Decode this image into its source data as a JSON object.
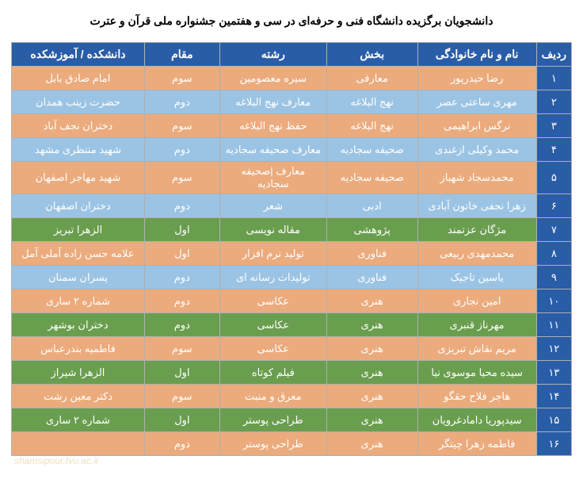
{
  "title": "دانشجویان برگزیده دانشگاه فنی و حرفه‌ای در سی و هفتمین جشنواره ملی قرآن و عترت",
  "watermark": "shamsipour.tvu.ac.ir",
  "colors": {
    "header_bg": "#2a5da8",
    "orange_bg": "#ebab7d",
    "blue_bg": "#9bc4e4",
    "green_bg": "#6a9e4f"
  },
  "columns": [
    {
      "label": "ردیف",
      "key": "idx"
    },
    {
      "label": "نام و نام خانوادگی",
      "key": "name"
    },
    {
      "label": "بخش",
      "key": "section"
    },
    {
      "label": "رشته",
      "key": "field"
    },
    {
      "label": "مقام",
      "key": "rank"
    },
    {
      "label": "دانشکده / آموزشکده",
      "key": "school"
    }
  ],
  "rows": [
    {
      "idx": "۱",
      "name": "رضا  حیدرپور",
      "section": "معارفی",
      "field": "سیره معصومین",
      "rank": "سوم",
      "school": "امام صادق بابل",
      "color": "orange"
    },
    {
      "idx": "۲",
      "name": "مهری  ساعتی عصر",
      "section": "نهج البلاغه",
      "field": "معارف نهج البلاغه",
      "rank": "دوم",
      "school": "حضرت زینب همدان",
      "color": "blue"
    },
    {
      "idx": "۳",
      "name": "نرگس  ابراهیمی",
      "section": "نهج البلاغه",
      "field": "حفظ نهج البلاغه",
      "rank": "سوم",
      "school": "دختران نجف آباد",
      "color": "orange"
    },
    {
      "idx": "۴",
      "name": "محمد  وکیلی ازغندی",
      "section": "صحیفه سجادیه",
      "field": "معارف صحیفه سجادیه",
      "rank": "دوم",
      "school": "شهید منتظری مشهد",
      "color": "blue"
    },
    {
      "idx": "۵",
      "name": "محمدسجاد  شهباز",
      "section": "صحیفه سجادیه",
      "field": "معارف |صحیفه سجادیه",
      "rank": "سوم",
      "school": "شهید مهاجر اصفهان",
      "color": "orange"
    },
    {
      "idx": "۶",
      "name": "زهرا  نجفی خاتون آبادی",
      "section": "ادبی",
      "field": "شعر",
      "rank": "دوم",
      "school": "دختران اصفهان",
      "color": "blue"
    },
    {
      "idx": "۷",
      "name": "مژگان  عزتمند",
      "section": "پژوهشی",
      "field": "مقاله نویسی",
      "rank": "اول",
      "school": "الزهرا تبریز",
      "color": "green"
    },
    {
      "idx": "۸",
      "name": "محمدمهدی  ربیعی",
      "section": "فناوری",
      "field": "تولید نرم افزار",
      "rank": "اول",
      "school": "علامه حسن زاده آملی آمل",
      "color": "orange"
    },
    {
      "idx": "۹",
      "name": "یاسین  تاجیک",
      "section": "فناوری",
      "field": "تولیدات رسانه ای",
      "rank": "دوم",
      "school": "پسران سمنان",
      "color": "blue"
    },
    {
      "idx": "۱۰",
      "name": "امین  نجاری",
      "section": "هنری",
      "field": "عکاسی",
      "rank": "دوم",
      "school": "شماره ۲ ساری",
      "color": "orange"
    },
    {
      "idx": "۱۱",
      "name": "مهرناز  قنبری",
      "section": "هنری",
      "field": "عکاسی",
      "rank": "دوم",
      "school": "دختران بوشهر",
      "color": "green"
    },
    {
      "idx": "۱۲",
      "name": "مریم  نقاش تبریزی",
      "section": "هنری",
      "field": "عکاسی",
      "rank": "سوم",
      "school": "فاطمیه بندرعباس",
      "color": "orange"
    },
    {
      "idx": "۱۳",
      "name": "سیده محیا  موسوی نیا",
      "section": "هنری",
      "field": "فیلم کوتاه",
      "rank": "اول",
      "school": "الزهرا شیراز",
      "color": "green"
    },
    {
      "idx": "۱۴",
      "name": "هاجر  فلاح حقگو",
      "section": "هنری",
      "field": "معرق و منبت",
      "rank": "سوم",
      "school": "دکتر معین رشت",
      "color": "orange"
    },
    {
      "idx": "۱۵",
      "name": "سیدپوریا  دامادغرویان",
      "section": "هنری",
      "field": "طراحی پوستر",
      "rank": "اول",
      "school": "شماره ۲ ساری",
      "color": "green"
    },
    {
      "idx": "۱۶",
      "name": "فاطمه زهرا  چیتگر",
      "section": "هنری",
      "field": "طراحی پوستر",
      "rank": "دوم",
      "school": "",
      "color": "orange"
    }
  ]
}
